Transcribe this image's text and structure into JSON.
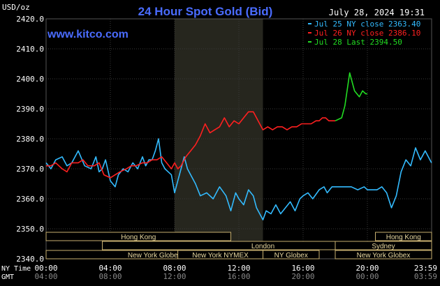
{
  "header": {
    "title": "24 Hour Spot Gold (Bid)",
    "units": "USD/oz",
    "timestamp": "July 28, 2024 19:31",
    "source": "www.kitco.com"
  },
  "legend": [
    {
      "label": "Jul 25 NY close 2363.40",
      "color": "#33bbff"
    },
    {
      "label": "Jul 26 NY close 2386.10",
      "color": "#ff2020"
    },
    {
      "label": "Jul 28 Last 2394.50",
      "color": "#22dd22"
    }
  ],
  "colors": {
    "background": "#000000",
    "grid": "#3a3a3a",
    "axis_text": "#ffffff",
    "title": "#4a6cff",
    "london_band": "#26261e",
    "session_fill": "#000000",
    "session_border": "#c8b070",
    "session_text": "#e8d8a0"
  },
  "x_axis": {
    "ny_label": "NY Time",
    "gmt_label": "GMT",
    "ny_ticks": [
      "00:00",
      "04:00",
      "08:00",
      "12:00",
      "16:00",
      "20:00",
      "23:59"
    ],
    "gmt_ticks": [
      "04:00",
      "08:00",
      "12:00",
      "16:00",
      "20:00",
      "00:00",
      "03:59"
    ]
  },
  "sessions_left": [
    {
      "label": "Hong Kong",
      "start": 0,
      "end": 11.5
    },
    {
      "label": "London",
      "start": 3.5,
      "end": 23.5
    },
    {
      "label": "New York Globex",
      "start": 0,
      "end": 13.5
    },
    {
      "label": "New York NYMEX",
      "start": 8.2,
      "end": 13.5
    },
    {
      "label": "NY Globex",
      "start": 13.5,
      "end": 17
    }
  ],
  "sessions_right": [
    {
      "label": "Hong Kong",
      "start": 20.5,
      "end": 24
    },
    {
      "label": "Sydney",
      "start": 18,
      "end": 24
    },
    {
      "label": "New York Globex",
      "start": 18,
      "end": 24
    }
  ],
  "chart_data": {
    "type": "line",
    "title": "24 Hour Spot Gold (Bid)",
    "ylabel": "USD/oz",
    "xlim": [
      0,
      24
    ],
    "ylim": [
      2340,
      2420
    ],
    "yticks": [
      2340,
      2350,
      2360,
      2370,
      2380,
      2390,
      2400,
      2410,
      2420
    ],
    "grid": true,
    "legend_position": "top-right",
    "london_shading": [
      8,
      13.5
    ],
    "series": [
      {
        "name": "Jul 25 NY close 2363.40",
        "color": "#33bbff",
        "x": [
          0,
          0.3,
          0.6,
          1,
          1.3,
          1.6,
          2,
          2.4,
          2.8,
          3.1,
          3.3,
          3.5,
          3.7,
          4,
          4.3,
          4.5,
          4.8,
          5.1,
          5.4,
          5.7,
          6,
          6.2,
          6.4,
          6.6,
          6.8,
          7,
          7.2,
          7.4,
          7.6,
          7.8,
          8,
          8.2,
          8.4,
          8.6,
          8.8,
          9,
          9.3,
          9.6,
          10,
          10.4,
          10.8,
          11.2,
          11.5,
          11.8,
          12,
          12.3,
          12.6,
          12.9,
          13.1,
          13.3,
          13.5,
          13.7,
          14,
          14.3,
          14.6,
          14.9,
          15.2,
          15.5,
          15.8,
          16,
          16.3,
          16.6,
          17,
          17.3,
          17.5,
          17.8,
          18,
          18.3,
          18.6,
          19,
          19.4,
          19.8,
          20,
          20.3,
          20.6,
          20.9,
          21.2,
          21.5,
          21.8,
          22.1,
          22.4,
          22.7,
          23,
          23.3,
          23.6,
          23.99
        ],
        "y": [
          2372,
          2370,
          2373,
          2374,
          2371,
          2372,
          2376,
          2371,
          2370,
          2374,
          2369,
          2370,
          2373,
          2366,
          2364,
          2368,
          2370,
          2369,
          2372,
          2370,
          2374,
          2371,
          2373,
          2373,
          2376,
          2380,
          2372,
          2370,
          2369,
          2368,
          2362,
          2366,
          2370,
          2374,
          2370,
          2368,
          2365,
          2361,
          2362,
          2360,
          2364,
          2361,
          2356,
          2362,
          2360,
          2358,
          2363,
          2361,
          2357,
          2355,
          2353,
          2356,
          2355,
          2358,
          2355,
          2357,
          2359,
          2356,
          2360,
          2361,
          2362,
          2360,
          2363,
          2364,
          2362,
          2364,
          2364,
          2364,
          2364,
          2364,
          2363,
          2364,
          2363,
          2363,
          2363,
          2364,
          2362,
          2357,
          2361,
          2369,
          2373,
          2371,
          2377,
          2373,
          2376,
          2372
        ]
      },
      {
        "name": "Jul 26 NY close 2386.10",
        "color": "#ff2020",
        "x": [
          0,
          0.3,
          0.6,
          1,
          1.3,
          1.6,
          2,
          2.3,
          2.6,
          3,
          3.3,
          3.6,
          4,
          4.3,
          4.6,
          5,
          5.3,
          5.6,
          6,
          6.3,
          6.6,
          6.9,
          7.2,
          7.5,
          7.8,
          8,
          8.2,
          8.4,
          8.7,
          9,
          9.3,
          9.6,
          9.9,
          10.2,
          10.5,
          10.8,
          11.1,
          11.4,
          11.7,
          12,
          12.3,
          12.6,
          12.9,
          13.2,
          13.5,
          13.8,
          14.1,
          14.4,
          14.7,
          15,
          15.3,
          15.6,
          15.9,
          16.2,
          16.5,
          16.8,
          17,
          17.2,
          17.4,
          17.6,
          17.8,
          18
        ],
        "y": [
          2371,
          2371,
          2372,
          2370,
          2369,
          2372,
          2372,
          2373,
          2371,
          2371,
          2372,
          2368,
          2367,
          2368,
          2369,
          2370,
          2371,
          2371,
          2372,
          2372,
          2373,
          2373,
          2374,
          2372,
          2370,
          2372,
          2370,
          2371,
          2374,
          2376,
          2378,
          2381,
          2385,
          2382,
          2383,
          2384,
          2387,
          2384,
          2386,
          2385,
          2387,
          2389,
          2389,
          2386,
          2383,
          2384,
          2383,
          2384,
          2384,
          2383,
          2384,
          2384,
          2385,
          2385,
          2385,
          2386,
          2386,
          2387,
          2387,
          2386,
          2386,
          2386
        ]
      },
      {
        "name": "Jul 28 Last 2394.50",
        "color": "#22dd22",
        "x": [
          18,
          18.4,
          18.6,
          18.9,
          19.2,
          19.5,
          19.7,
          19.9,
          20
        ],
        "y": [
          2386,
          2387,
          2391,
          2402,
          2396,
          2394,
          2396,
          2395,
          2395
        ]
      }
    ]
  }
}
